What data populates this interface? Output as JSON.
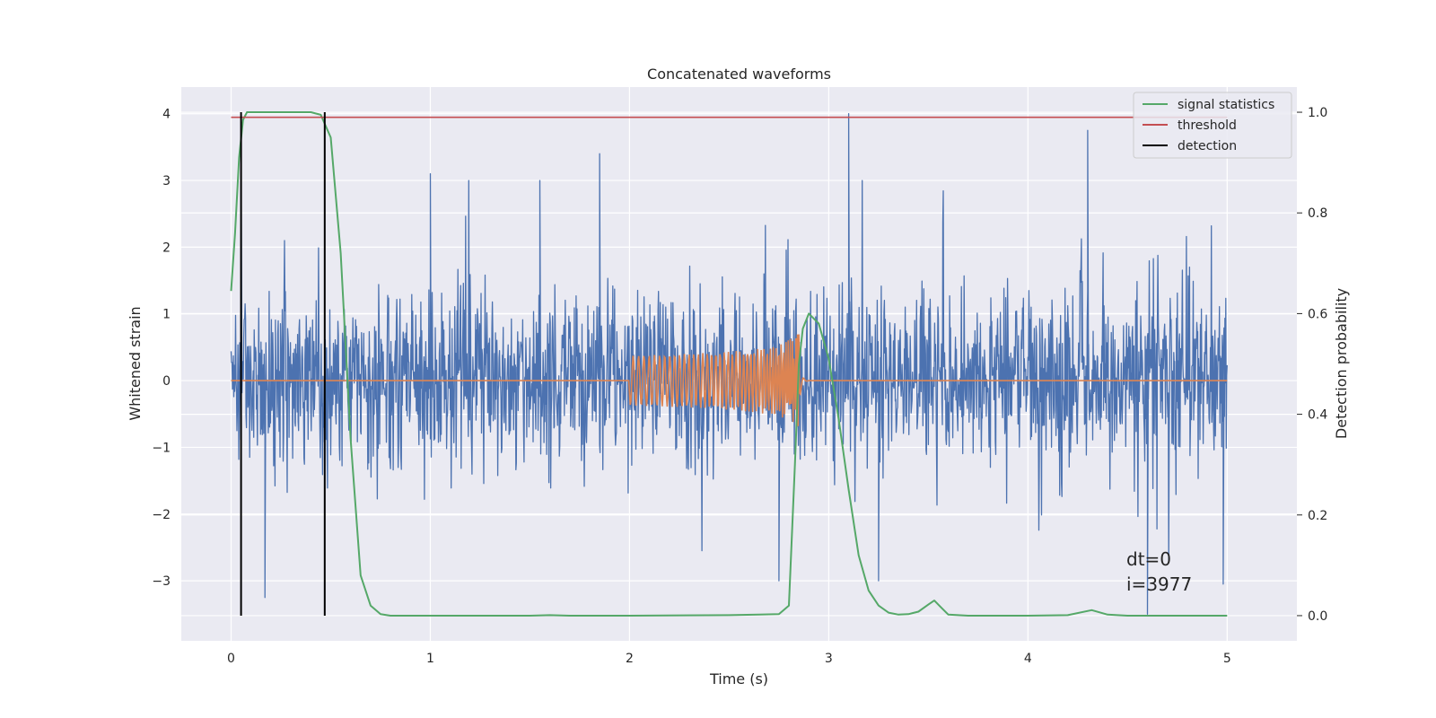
{
  "chart_data": {
    "type": "line",
    "title": "Concatenated waveforms",
    "xlabel": "Time (s)",
    "ylabel_left": "Whitened strain",
    "ylabel_right": "Detection probability",
    "xlim": [
      -0.25,
      5.35
    ],
    "ylim_left": [
      -3.9,
      4.4
    ],
    "ylim_right": [
      -0.05,
      1.05
    ],
    "x_ticks": [
      0,
      1,
      2,
      3,
      4,
      5
    ],
    "y_left_ticks": [
      -3,
      -2,
      -1,
      0,
      1,
      2,
      3,
      4
    ],
    "y_left_tick_labels": [
      "−3",
      "−2",
      "−1",
      "0",
      "1",
      "2",
      "3",
      "4"
    ],
    "y_right_ticks": [
      0.0,
      0.2,
      0.4,
      0.6,
      0.8,
      1.0
    ],
    "y_right_tick_labels": [
      "0.0",
      "0.2",
      "0.4",
      "0.6",
      "0.8",
      "1.0"
    ],
    "grid": true,
    "legend_position": "top-right",
    "legend": [
      {
        "label": "signal statistics",
        "color": "#55a868"
      },
      {
        "label": "threshold",
        "color": "#c44e52"
      },
      {
        "label": "detection",
        "color": "#000000"
      }
    ],
    "annotations": [
      "dt=0",
      "i=3977"
    ],
    "series": [
      {
        "kind": "noise",
        "color": "#4c72b0",
        "axis": "left",
        "x_range": [
          0,
          5
        ],
        "typical_range": [
          -1.9,
          2.3
        ],
        "peaks": [
          [
            0.05,
            3.7
          ],
          [
            1.0,
            3.1
          ],
          [
            1.55,
            3.0
          ],
          [
            1.85,
            3.4
          ],
          [
            3.1,
            4.0
          ],
          [
            4.3,
            3.75
          ],
          [
            0.17,
            -3.25
          ],
          [
            2.75,
            -3.0
          ],
          [
            3.25,
            -3.0
          ],
          [
            4.6,
            -3.5
          ],
          [
            4.98,
            -3.05
          ]
        ]
      },
      {
        "kind": "chirp",
        "color": "#dd8452",
        "axis": "left",
        "x_range": [
          0,
          5
        ],
        "chirp_start": 2.0,
        "chirp_end": 2.85,
        "start_amplitude": 0.1,
        "end_amplitude": 0.7
      },
      {
        "name": "signal statistics",
        "color": "#55a868",
        "axis": "right",
        "x": [
          0.0,
          0.02,
          0.04,
          0.06,
          0.08,
          0.1,
          0.2,
          0.3,
          0.4,
          0.45,
          0.5,
          0.55,
          0.6,
          0.65,
          0.7,
          0.75,
          0.8,
          1.0,
          1.5,
          1.6,
          1.7,
          2.0,
          2.5,
          2.65,
          2.75,
          2.8,
          2.83,
          2.85,
          2.87,
          2.9,
          2.95,
          3.0,
          3.05,
          3.1,
          3.15,
          3.2,
          3.25,
          3.3,
          3.35,
          3.4,
          3.45,
          3.5,
          3.53,
          3.56,
          3.6,
          3.7,
          4.0,
          4.2,
          4.32,
          4.4,
          4.5,
          5.0
        ],
        "values": [
          0.645,
          0.76,
          0.91,
          0.985,
          1.0,
          1.0,
          1.0,
          1.0,
          1.0,
          0.995,
          0.95,
          0.72,
          0.35,
          0.08,
          0.02,
          0.003,
          0.0,
          0.0,
          0.0,
          0.001,
          0.0,
          0.0,
          0.001,
          0.002,
          0.003,
          0.02,
          0.3,
          0.5,
          0.57,
          0.6,
          0.58,
          0.51,
          0.39,
          0.25,
          0.12,
          0.05,
          0.02,
          0.006,
          0.002,
          0.003,
          0.008,
          0.022,
          0.03,
          0.018,
          0.002,
          0.0,
          0.0,
          0.001,
          0.011,
          0.002,
          0.0,
          0.0
        ]
      },
      {
        "name": "threshold",
        "color": "#c44e52",
        "axis": "right",
        "x": [
          0,
          5
        ],
        "values": [
          0.99,
          0.99
        ]
      },
      {
        "name": "detection",
        "color": "#000000",
        "axis": "right",
        "x": [
          0.05,
          0.47
        ],
        "range": [
          0.0,
          1.0
        ]
      }
    ]
  }
}
